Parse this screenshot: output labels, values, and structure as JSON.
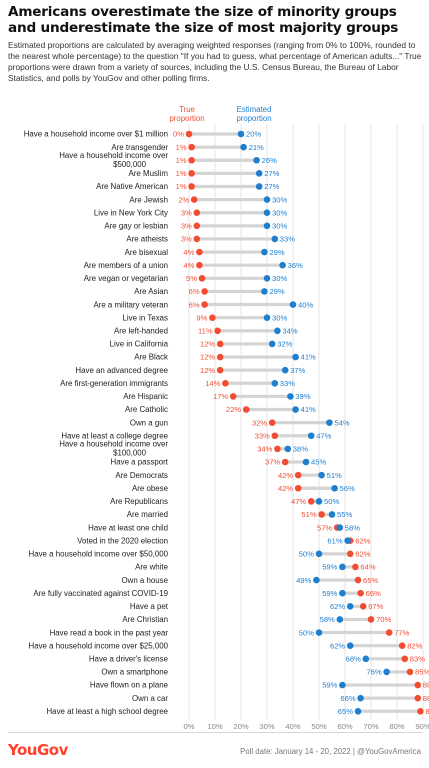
{
  "header": {
    "title": "Americans overestimate the size of minority groups and underestimate the size of most majority groups",
    "subtitle": "Estimated proportions are calculated by averaging weighted responses (ranging from 0% to 100%, rounded to the nearest whole percentage) to the question \"If you had to guess, what percentage of American adults...\" True proportions were drawn from a variety of sources, including the U.S. Census Bureau, the Bureau of Labor Statistics, and polls by YouGov and other polling firms."
  },
  "footer": {
    "logo": "YouGov",
    "source": "Poll date: January 14 - 20, 2022 | @YouGovAmerica"
  },
  "colors": {
    "true": "#f24d33",
    "estimated": "#1f7fcf",
    "connector": "#d4d4d4",
    "grid": "#e6e6e6"
  },
  "chart_data": {
    "type": "dot-plot",
    "title": "Americans overestimate the size of minority groups and underestimate the size of most majority groups",
    "legend": {
      "true_label": [
        "True",
        "proportion"
      ],
      "estimated_label": [
        "Estimated",
        "proportion"
      ],
      "placement": "top"
    },
    "x_ticks": [
      "0%",
      "10%",
      "20%",
      "30%",
      "40%",
      "50%",
      "60%",
      "70%",
      "80%",
      "90%"
    ],
    "xlim": [
      0,
      90
    ],
    "grid": true,
    "rows": [
      {
        "label": "Have a household income over $1 million",
        "true": 0,
        "estimated": 20
      },
      {
        "label": "Are transgender",
        "true": 1,
        "estimated": 21
      },
      {
        "label": [
          "Have a household income over",
          "$500,000"
        ],
        "true": 1,
        "estimated": 26
      },
      {
        "label": "Are Muslim",
        "true": 1,
        "estimated": 27
      },
      {
        "label": "Are Native American",
        "true": 1,
        "estimated": 27
      },
      {
        "label": "Are Jewish",
        "true": 2,
        "estimated": 30
      },
      {
        "label": "Live in New York City",
        "true": 3,
        "estimated": 30
      },
      {
        "label": "Are gay or lesbian",
        "true": 3,
        "estimated": 30
      },
      {
        "label": "Are atheists",
        "true": 3,
        "estimated": 33
      },
      {
        "label": "Are bisexual",
        "true": 4,
        "estimated": 29
      },
      {
        "label": "Are members of a union",
        "true": 4,
        "estimated": 36
      },
      {
        "label": "Are vegan or vegetarian",
        "true": 5,
        "estimated": 30
      },
      {
        "label": "Are Asian",
        "true": 6,
        "estimated": 29
      },
      {
        "label": "Are a military veteran",
        "true": 6,
        "estimated": 40
      },
      {
        "label": "Live in Texas",
        "true": 9,
        "estimated": 30
      },
      {
        "label": "Are left-handed",
        "true": 11,
        "estimated": 34
      },
      {
        "label": "Live in California",
        "true": 12,
        "estimated": 32
      },
      {
        "label": "Are Black",
        "true": 12,
        "estimated": 41
      },
      {
        "label": "Have an advanced degree",
        "true": 12,
        "estimated": 37
      },
      {
        "label": "Are first-generation immigrants",
        "true": 14,
        "estimated": 33
      },
      {
        "label": "Are Hispanic",
        "true": 17,
        "estimated": 39
      },
      {
        "label": "Are Catholic",
        "true": 22,
        "estimated": 41
      },
      {
        "label": "Own a gun",
        "true": 32,
        "estimated": 54
      },
      {
        "label": "Have at least a college degree",
        "true": 33,
        "estimated": 47
      },
      {
        "label": [
          "Have a household income over",
          "$100,000"
        ],
        "true": 34,
        "estimated": 38
      },
      {
        "label": "Have a passport",
        "true": 37,
        "estimated": 45
      },
      {
        "label": "Are Democrats",
        "true": 42,
        "estimated": 51
      },
      {
        "label": "Are obese",
        "true": 42,
        "estimated": 56
      },
      {
        "label": "Are Republicans",
        "true": 47,
        "estimated": 50
      },
      {
        "label": "Are married",
        "true": 51,
        "estimated": 55
      },
      {
        "label": "Have at least one child",
        "true": 57,
        "estimated": 58
      },
      {
        "label": "Voted in the 2020 election",
        "true": 62,
        "estimated": 61
      },
      {
        "label": "Have a household income over $50,000",
        "true": 62,
        "estimated": 50
      },
      {
        "label": "Are white",
        "true": 64,
        "estimated": 59
      },
      {
        "label": "Own a house",
        "true": 65,
        "estimated": 49
      },
      {
        "label": "Are fully vaccinated against COVID-19",
        "true": 66,
        "estimated": 59
      },
      {
        "label": "Have a pet",
        "true": 67,
        "estimated": 62
      },
      {
        "label": "Are Christian",
        "true": 70,
        "estimated": 58
      },
      {
        "label": "Have read a book in the past year",
        "true": 77,
        "estimated": 50
      },
      {
        "label": "Have a household income over $25,000",
        "true": 82,
        "estimated": 62
      },
      {
        "label": "Have a driver's license",
        "true": 83,
        "estimated": 68
      },
      {
        "label": "Own a smartphone",
        "true": 85,
        "estimated": 76
      },
      {
        "label": "Have flown on a plane",
        "true": 88,
        "estimated": 59
      },
      {
        "label": "Own a car",
        "true": 88,
        "estimated": 66
      },
      {
        "label": "Have at least a high school degree",
        "true": 89,
        "estimated": 65
      }
    ]
  }
}
